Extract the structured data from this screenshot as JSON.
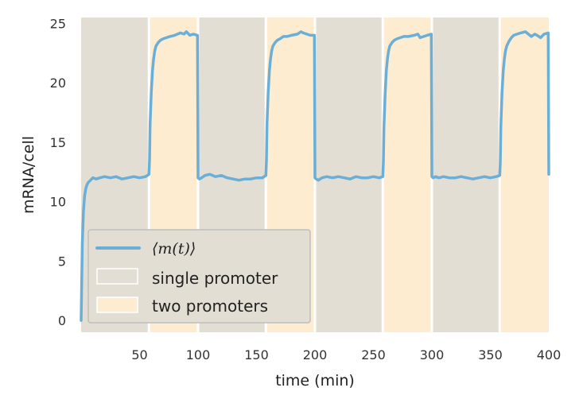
{
  "chart_data": {
    "type": "line",
    "xlabel": "time (min)",
    "ylabel": "mRNA/cell",
    "xlim": [
      0,
      400
    ],
    "ylim": [
      -1,
      25.5
    ],
    "xticks": [
      "50",
      "100",
      "150",
      "200",
      "250",
      "300",
      "350",
      "400"
    ],
    "xtick_values": [
      50,
      100,
      150,
      200,
      250,
      300,
      350,
      400
    ],
    "yticks": [
      "0",
      "5",
      "10",
      "15",
      "20",
      "25"
    ],
    "ytick_values": [
      0,
      5,
      10,
      15,
      20,
      25
    ],
    "grid": false,
    "legend_placement": "lower-left",
    "background_regions": [
      {
        "x0": 0,
        "x1": 58,
        "label": "single promoter"
      },
      {
        "x0": 58,
        "x1": 100,
        "label": "two promoters"
      },
      {
        "x0": 100,
        "x1": 158,
        "label": "single promoter"
      },
      {
        "x0": 158,
        "x1": 200,
        "label": "two promoters"
      },
      {
        "x0": 200,
        "x1": 258,
        "label": "single promoter"
      },
      {
        "x0": 258,
        "x1": 300,
        "label": "two promoters"
      },
      {
        "x0": 300,
        "x1": 358,
        "label": "single promoter"
      },
      {
        "x0": 358,
        "x1": 400,
        "label": "two promoters"
      }
    ],
    "series": [
      {
        "name": "⟨m(t)⟩",
        "x": [
          0,
          1,
          2,
          3,
          4,
          5,
          6,
          8,
          10,
          13,
          16,
          20,
          25,
          30,
          35,
          40,
          45,
          50,
          55,
          58,
          58.5,
          59,
          60,
          61,
          62,
          63,
          64,
          66,
          68,
          70,
          73,
          76,
          80,
          85,
          88,
          90,
          93,
          96,
          99.5,
          100,
          101,
          103,
          106,
          110,
          115,
          120,
          125,
          130,
          135,
          140,
          145,
          150,
          155,
          158,
          158.5,
          159,
          160,
          161,
          162,
          163,
          164,
          166,
          168,
          170,
          173,
          176,
          180,
          185,
          188,
          190,
          193,
          196,
          199.5,
          200,
          201,
          203,
          206,
          210,
          215,
          220,
          225,
          230,
          235,
          240,
          245,
          250,
          255,
          258,
          258.5,
          259,
          260,
          261,
          262,
          263,
          264,
          266,
          268,
          270,
          273,
          276,
          280,
          285,
          288,
          290,
          293,
          296,
          299.5,
          300,
          301,
          303,
          306,
          310,
          315,
          320,
          325,
          330,
          335,
          340,
          345,
          350,
          355,
          358,
          358.5,
          359,
          360,
          361,
          362,
          363,
          364,
          366,
          368,
          370,
          373,
          376,
          380,
          385,
          388,
          390,
          393,
          396,
          399.5,
          400
        ],
        "y": [
          0,
          6.5,
          9.2,
          10.5,
          11.1,
          11.4,
          11.6,
          11.8,
          12.0,
          11.9,
          12.0,
          12.1,
          12.0,
          12.1,
          11.9,
          12.0,
          12.1,
          12.0,
          12.1,
          12.3,
          13.5,
          16.5,
          19.2,
          21.0,
          22.0,
          22.7,
          23.1,
          23.4,
          23.6,
          23.7,
          23.8,
          23.9,
          24.0,
          24.2,
          24.1,
          24.3,
          24.0,
          24.1,
          24.0,
          12.0,
          11.9,
          12.0,
          12.2,
          12.3,
          12.1,
          12.2,
          12.0,
          11.9,
          11.8,
          11.9,
          11.9,
          12.0,
          12.0,
          12.2,
          13.5,
          16.5,
          19.2,
          21.0,
          22.0,
          22.7,
          23.1,
          23.4,
          23.6,
          23.7,
          23.9,
          23.9,
          24.0,
          24.1,
          24.3,
          24.2,
          24.1,
          24.0,
          24.0,
          12.0,
          11.9,
          11.8,
          12.0,
          12.1,
          12.0,
          12.1,
          12.0,
          11.9,
          12.1,
          12.0,
          12.0,
          12.1,
          12.0,
          12.1,
          13.3,
          16.2,
          19.0,
          21.0,
          22.0,
          22.7,
          23.1,
          23.4,
          23.6,
          23.7,
          23.8,
          23.9,
          23.9,
          24.0,
          24.1,
          23.8,
          23.9,
          24.0,
          24.1,
          12.1,
          12.0,
          12.1,
          12.0,
          12.1,
          12.0,
          12.0,
          12.1,
          12.0,
          11.9,
          12.0,
          12.1,
          12.0,
          12.1,
          12.2,
          13.3,
          16.3,
          19.2,
          21.0,
          22.0,
          22.7,
          23.1,
          23.5,
          23.8,
          24.0,
          24.1,
          24.2,
          24.3,
          23.9,
          24.1,
          24.0,
          23.8,
          24.1,
          24.2,
          12.3
        ]
      }
    ],
    "legend": {
      "line_label": "⟨m(t)⟩",
      "single_label": "single promoter",
      "two_label": "two promoters"
    },
    "colors": {
      "line": "#6baed6",
      "single_promoter": "#e3ded3",
      "two_promoters": "#feecd0",
      "legend_bg": "#e3ded3",
      "legend_border": "#bdbdbd"
    }
  }
}
